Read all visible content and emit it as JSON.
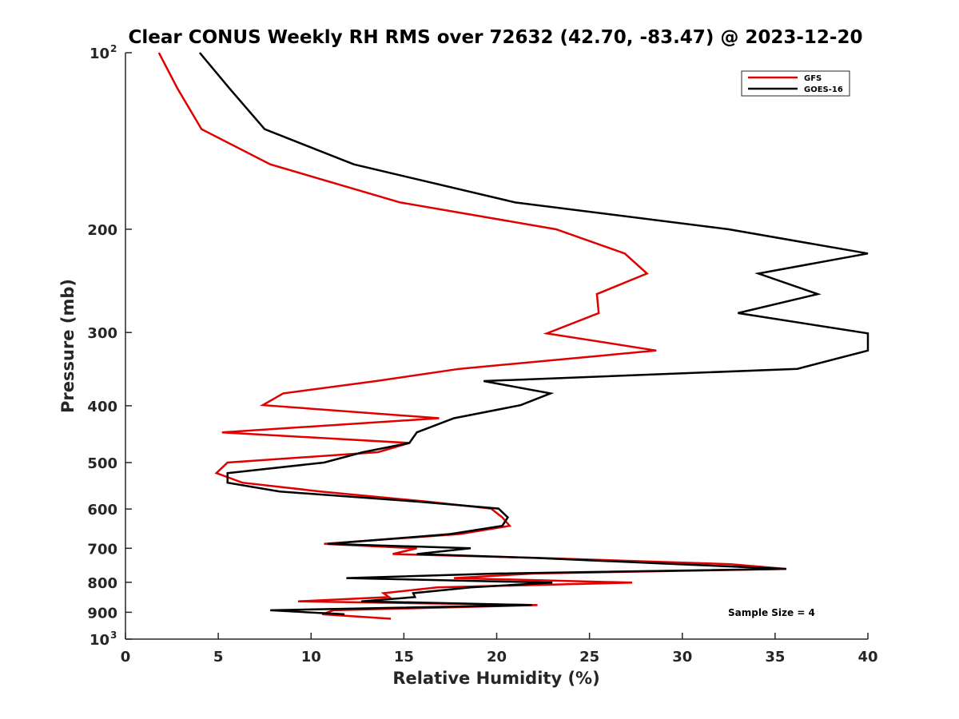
{
  "chart_data": {
    "type": "line",
    "title": "Clear CONUS Weekly RH RMS over 72632 (42.70, -83.47) @ 2023-12-20",
    "xlabel": "Relative Humidity (%)",
    "ylabel": "Pressure (mb)",
    "xlim": [
      0,
      40
    ],
    "ylim": [
      100,
      1000
    ],
    "y_scale": "log",
    "y_reversed": true,
    "x_ticks": [
      "0",
      "5",
      "10",
      "15",
      "20",
      "25",
      "30",
      "35",
      "40"
    ],
    "y_ticks": [
      {
        "value": 100,
        "label": "10",
        "exp": "2"
      },
      {
        "value": 200,
        "label": "200"
      },
      {
        "value": 300,
        "label": "300"
      },
      {
        "value": 400,
        "label": "400"
      },
      {
        "value": 500,
        "label": "500"
      },
      {
        "value": 600,
        "label": "600"
      },
      {
        "value": 700,
        "label": "700"
      },
      {
        "value": 800,
        "label": "800"
      },
      {
        "value": 900,
        "label": "900"
      },
      {
        "value": 1000,
        "label": "10",
        "exp": "3"
      }
    ],
    "grid": false,
    "legend_position": "top-right",
    "annotation": "Sample Size = 4",
    "series": [
      {
        "name": "GFS",
        "color": "#e00000",
        "points": [
          [
            1.8,
            100
          ],
          [
            2.8,
            115
          ],
          [
            4.1,
            135
          ],
          [
            7.8,
            155
          ],
          [
            14.8,
            180
          ],
          [
            23.2,
            200
          ],
          [
            26.9,
            220
          ],
          [
            28.1,
            238
          ],
          [
            25.4,
            258
          ],
          [
            25.5,
            278
          ],
          [
            22.7,
            301
          ],
          [
            28.6,
            322
          ],
          [
            18.0,
            346
          ],
          [
            13.5,
            363
          ],
          [
            8.5,
            381
          ],
          [
            7.4,
            399
          ],
          [
            16.9,
            420
          ],
          [
            5.2,
            444
          ],
          [
            15.3,
            463
          ],
          [
            13.6,
            480
          ],
          [
            5.5,
            500
          ],
          [
            4.9,
            521
          ],
          [
            6.3,
            541
          ],
          [
            10.5,
            560
          ],
          [
            16.3,
            583
          ],
          [
            19.7,
            599
          ],
          [
            20.3,
            620
          ],
          [
            20.7,
            641
          ],
          [
            18.0,
            662
          ],
          [
            10.7,
            688
          ],
          [
            15.7,
            700
          ],
          [
            14.4,
            716
          ],
          [
            22.3,
            727
          ],
          [
            32.6,
            745
          ],
          [
            35.6,
            759
          ],
          [
            22.0,
            773
          ],
          [
            17.7,
            787
          ],
          [
            27.3,
            801
          ],
          [
            16.8,
            816
          ],
          [
            13.9,
            835
          ],
          [
            14.2,
            848
          ],
          [
            9.3,
            862
          ],
          [
            22.2,
            875
          ],
          [
            11.2,
            893
          ],
          [
            10.6,
            907
          ],
          [
            14.3,
            923
          ]
        ]
      },
      {
        "name": "GOES-16",
        "color": "#000000",
        "points": [
          [
            4.0,
            100
          ],
          [
            5.6,
            115
          ],
          [
            7.5,
            135
          ],
          [
            12.3,
            155
          ],
          [
            21.0,
            180
          ],
          [
            32.5,
            200
          ],
          [
            40.0,
            220
          ],
          [
            34.1,
            238
          ],
          [
            37.3,
            258
          ],
          [
            33.0,
            278
          ],
          [
            40.0,
            301
          ],
          [
            40.0,
            322
          ],
          [
            36.2,
            346
          ],
          [
            19.3,
            363
          ],
          [
            22.9,
            381
          ],
          [
            21.3,
            399
          ],
          [
            17.7,
            420
          ],
          [
            15.7,
            444
          ],
          [
            15.3,
            463
          ],
          [
            12.8,
            480
          ],
          [
            10.7,
            500
          ],
          [
            5.5,
            521
          ],
          [
            5.5,
            541
          ],
          [
            8.3,
            560
          ],
          [
            15.8,
            583
          ],
          [
            20.1,
            599
          ],
          [
            20.6,
            620
          ],
          [
            20.3,
            641
          ],
          [
            17.5,
            662
          ],
          [
            10.9,
            688
          ],
          [
            18.6,
            700
          ],
          [
            15.7,
            716
          ],
          [
            22.1,
            727
          ],
          [
            29.8,
            745
          ],
          [
            35.6,
            759
          ],
          [
            20.1,
            773
          ],
          [
            11.9,
            787
          ],
          [
            23.0,
            801
          ],
          [
            18.6,
            816
          ],
          [
            15.5,
            835
          ],
          [
            15.6,
            848
          ],
          [
            12.7,
            862
          ],
          [
            21.9,
            875
          ],
          [
            7.8,
            893
          ],
          [
            11.8,
            907
          ]
        ]
      }
    ]
  }
}
